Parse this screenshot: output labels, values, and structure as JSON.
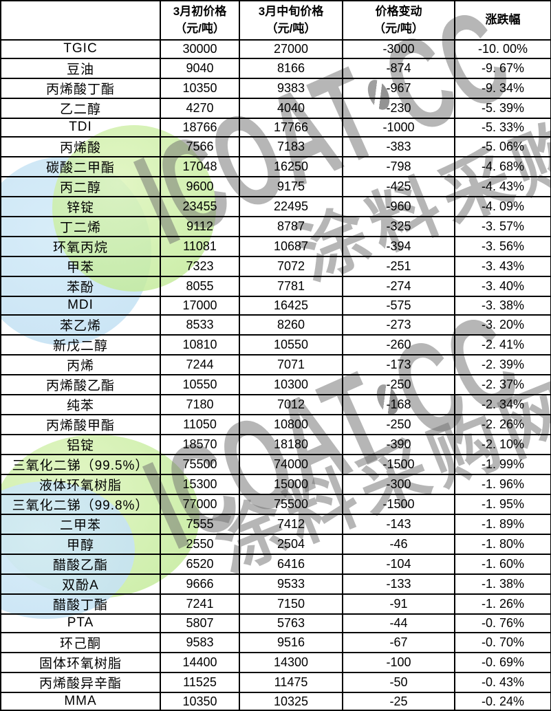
{
  "table": {
    "header": {
      "product": "",
      "col_early": {
        "line1": "3月初价格",
        "line2": "（元/吨）"
      },
      "col_mid": {
        "line1": "3月中旬价格",
        "line2": "（元/吨）"
      },
      "col_change": {
        "line1": "价格变动",
        "line2": "（元/吨）"
      },
      "col_pct": "涨跌幅"
    },
    "rows": [
      {
        "product": "TGIC",
        "early": "30000",
        "mid": "27000",
        "change": "-3000",
        "pct": "-10. 00%"
      },
      {
        "product": "豆油",
        "early": "9040",
        "mid": "8166",
        "change": "-874",
        "pct": "-9. 67%"
      },
      {
        "product": "丙烯酸丁酯",
        "early": "10350",
        "mid": "9383",
        "change": "-967",
        "pct": "-9. 34%"
      },
      {
        "product": "乙二醇",
        "early": "4270",
        "mid": "4040",
        "change": "-230",
        "pct": "-5. 39%"
      },
      {
        "product": "TDI",
        "early": "18766",
        "mid": "17766",
        "change": "-1000",
        "pct": "-5. 33%"
      },
      {
        "product": "丙烯酸",
        "early": "7566",
        "mid": "7183",
        "change": "-383",
        "pct": "-5. 06%"
      },
      {
        "product": "碳酸二甲酯",
        "early": "17048",
        "mid": "16250",
        "change": "-798",
        "pct": "-4. 68%"
      },
      {
        "product": "丙二醇",
        "early": "9600",
        "mid": "9175",
        "change": "-425",
        "pct": "-4. 43%"
      },
      {
        "product": "锌锭",
        "early": "23455",
        "mid": "22495",
        "change": "-960",
        "pct": "-4. 09%"
      },
      {
        "product": "丁二烯",
        "early": "9112",
        "mid": "8787",
        "change": "-325",
        "pct": "-3. 57%"
      },
      {
        "product": "环氧丙烷",
        "early": "11081",
        "mid": "10687",
        "change": "-394",
        "pct": "-3. 56%"
      },
      {
        "product": "甲苯",
        "early": "7323",
        "mid": "7072",
        "change": "-251",
        "pct": "-3. 43%"
      },
      {
        "product": "苯酚",
        "early": "8055",
        "mid": "7781",
        "change": "-274",
        "pct": "-3. 40%"
      },
      {
        "product": "MDI",
        "early": "17000",
        "mid": "16425",
        "change": "-575",
        "pct": "-3. 38%"
      },
      {
        "product": "苯乙烯",
        "early": "8533",
        "mid": "8260",
        "change": "-273",
        "pct": "-3. 20%"
      },
      {
        "product": "新戊二醇",
        "early": "10810",
        "mid": "10550",
        "change": "-260",
        "pct": "-2. 41%"
      },
      {
        "product": "丙烯",
        "early": "7244",
        "mid": "7071",
        "change": "-173",
        "pct": "-2. 39%"
      },
      {
        "product": "丙烯酸乙酯",
        "early": "10550",
        "mid": "10300",
        "change": "-250",
        "pct": "-2. 37%"
      },
      {
        "product": "纯苯",
        "early": "7180",
        "mid": "7012",
        "change": "-168",
        "pct": "-2. 34%"
      },
      {
        "product": "丙烯酸甲酯",
        "early": "11050",
        "mid": "10800",
        "change": "-250",
        "pct": "-2. 26%"
      },
      {
        "product": "铝锭",
        "early": "18570",
        "mid": "18180",
        "change": "-390",
        "pct": "-2. 10%"
      },
      {
        "product": "三氧化二锑（99.5%）",
        "early": "75500",
        "mid": "74000",
        "change": "-1500",
        "pct": "-1. 99%"
      },
      {
        "product": "液体环氧树脂",
        "early": "15300",
        "mid": "15000",
        "change": "-300",
        "pct": "-1. 96%"
      },
      {
        "product": "三氧化二锑（99.8%）",
        "early": "77000",
        "mid": "75500",
        "change": "-1500",
        "pct": "-1. 95%"
      },
      {
        "product": "二甲苯",
        "early": "7555",
        "mid": "7412",
        "change": "-143",
        "pct": "-1. 89%"
      },
      {
        "product": "甲醇",
        "early": "2550",
        "mid": "2504",
        "change": "-46",
        "pct": "-1. 80%"
      },
      {
        "product": "醋酸乙酯",
        "early": "6520",
        "mid": "6416",
        "change": "-104",
        "pct": "-1. 60%"
      },
      {
        "product": "双酚A",
        "early": "9666",
        "mid": "9533",
        "change": "-133",
        "pct": "-1. 38%"
      },
      {
        "product": "醋酸丁酯",
        "early": "7241",
        "mid": "7150",
        "change": "-91",
        "pct": "-1. 26%"
      },
      {
        "product": "PTA",
        "early": "5807",
        "mid": "5763",
        "change": "-44",
        "pct": "-0. 76%"
      },
      {
        "product": "环己酮",
        "early": "9583",
        "mid": "9516",
        "change": "-67",
        "pct": "-0. 70%"
      },
      {
        "product": "固体环氧树脂",
        "early": "14400",
        "mid": "14300",
        "change": "-100",
        "pct": "-0. 69%"
      },
      {
        "product": "丙烯酸异辛酯",
        "early": "11525",
        "mid": "11475",
        "change": "-50",
        "pct": "-0. 43%"
      },
      {
        "product": "MMA",
        "early": "10350",
        "mid": "10325",
        "change": "-25",
        "pct": "-0. 24%"
      }
    ]
  },
  "watermark": {
    "latin_prefix": "ICOAT",
    "latin_suffix": "CC",
    "cn": "涂料采购网",
    "colors": {
      "green_circle": "#c8eda0",
      "blue_circle": "#c7e3f4",
      "gray_text": "#a9a9a9",
      "table_border": "#000000",
      "text": "#000000"
    }
  }
}
